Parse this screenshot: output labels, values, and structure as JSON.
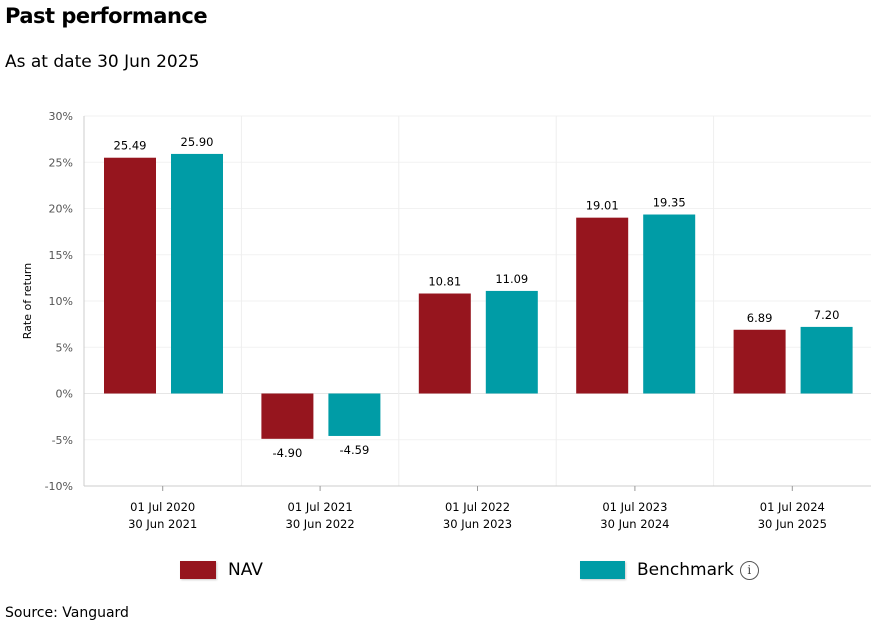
{
  "title": "Past performance",
  "subtitle": "As at date 30 Jun 2025",
  "source": "Source: Vanguard",
  "colors": {
    "nav": "#96151e",
    "benchmark": "#009ca6"
  },
  "chart_data": {
    "type": "bar",
    "ylabel": "Rate of return",
    "ylim": [
      -10,
      30
    ],
    "yticks": [
      "30%",
      "25%",
      "20%",
      "15%",
      "10%",
      "5%",
      "0%",
      "-5%",
      "-10%"
    ],
    "grid": true,
    "legend": "bottom",
    "categories": [
      [
        "01 Jul 2020",
        "30 Jun 2021"
      ],
      [
        "01 Jul 2021",
        "30 Jun 2022"
      ],
      [
        "01 Jul 2022",
        "30 Jun 2023"
      ],
      [
        "01 Jul 2023",
        "30 Jun 2024"
      ],
      [
        "01 Jul 2024",
        "30 Jun 2025"
      ]
    ],
    "series": [
      {
        "name": "NAV",
        "values": [
          25.49,
          -4.9,
          10.81,
          19.01,
          6.89
        ],
        "labels": [
          "25.49",
          "-4.90",
          "10.81",
          "19.01",
          "6.89"
        ]
      },
      {
        "name": "Benchmark",
        "values": [
          25.9,
          -4.59,
          11.09,
          19.35,
          7.2
        ],
        "labels": [
          "25.90",
          "-4.59",
          "11.09",
          "19.35",
          "7.20"
        ]
      }
    ]
  },
  "legend": {
    "nav": "NAV",
    "benchmark": "Benchmark",
    "info_icon": "i"
  }
}
